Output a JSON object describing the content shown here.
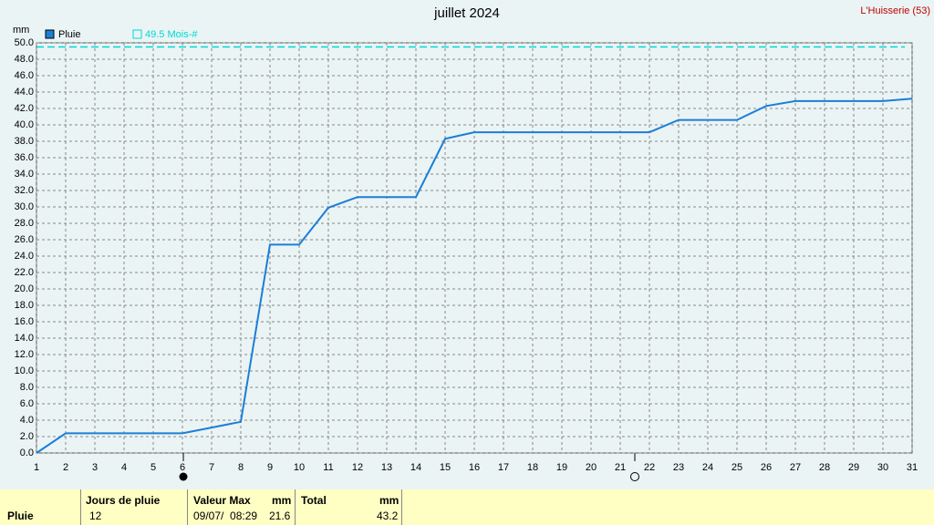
{
  "chart_data": {
    "type": "line",
    "title": "juillet 2024",
    "subtitle": "L'Huisserie (53)",
    "y_unit": "mm",
    "x": [
      1,
      2,
      3,
      4,
      5,
      6,
      7,
      8,
      9,
      10,
      11,
      12,
      13,
      14,
      15,
      16,
      17,
      18,
      19,
      20,
      21,
      22,
      23,
      24,
      25,
      26,
      27,
      28,
      29,
      30,
      31
    ],
    "series": [
      {
        "name": "Pluie",
        "color": "#1c7ed6",
        "values": [
          0.0,
          2.4,
          2.4,
          2.4,
          2.4,
          2.4,
          3.1,
          3.8,
          25.4,
          25.4,
          29.9,
          31.2,
          31.2,
          31.2,
          38.3,
          39.1,
          39.1,
          39.1,
          39.1,
          39.1,
          39.1,
          39.1,
          40.6,
          40.6,
          40.6,
          42.3,
          42.9,
          42.9,
          42.9,
          42.9,
          43.2
        ]
      }
    ],
    "reference_line": {
      "value": 49.5,
      "label": "49.5 Mois-#",
      "color": "#00d8d8"
    },
    "xlim": [
      1,
      31
    ],
    "xticks": [
      1,
      2,
      3,
      4,
      5,
      6,
      7,
      8,
      9,
      10,
      11,
      12,
      13,
      14,
      15,
      16,
      17,
      18,
      19,
      20,
      21,
      22,
      23,
      24,
      25,
      26,
      27,
      28,
      29,
      30,
      31
    ],
    "ylim": [
      0,
      50
    ],
    "yticks": [
      {
        "value": 0,
        "label": "0.0"
      },
      {
        "value": 2,
        "label": "2.0"
      },
      {
        "value": 4,
        "label": "4.0"
      },
      {
        "value": 6,
        "label": "6.0"
      },
      {
        "value": 8,
        "label": "8.0"
      },
      {
        "value": 10,
        "label": "10.0"
      },
      {
        "value": 12,
        "label": "12.0"
      },
      {
        "value": 14,
        "label": "14.0"
      },
      {
        "value": 16,
        "label": "16.0"
      },
      {
        "value": 18,
        "label": "18.0"
      },
      {
        "value": 20,
        "label": "20.0"
      },
      {
        "value": 22,
        "label": "22.0"
      },
      {
        "value": 24,
        "label": "24.0"
      },
      {
        "value": 26,
        "label": "26.0"
      },
      {
        "value": 28,
        "label": "28.0"
      },
      {
        "value": 30,
        "label": "30.0"
      },
      {
        "value": 32,
        "label": "32.0"
      },
      {
        "value": 34,
        "label": "34.0"
      },
      {
        "value": 36,
        "label": "36.0"
      },
      {
        "value": 38,
        "label": "38.0"
      },
      {
        "value": 40,
        "label": "40.0"
      },
      {
        "value": 42,
        "label": "42.0"
      },
      {
        "value": 44,
        "label": "44.0"
      },
      {
        "value": 46,
        "label": "46.0"
      },
      {
        "value": 48,
        "label": "48.0"
      },
      {
        "value": 50,
        "label": "50.0"
      }
    ],
    "grid": true
  },
  "summary": {
    "row_label": "Pluie",
    "days_header": "Jours de pluie",
    "days": 12,
    "max_header": "Valeur Max",
    "max_unit": "mm",
    "max_date": "09/07/  08:29",
    "max_value": 21.6,
    "total_header": "Total",
    "total_unit": "mm",
    "total": 43.2
  }
}
